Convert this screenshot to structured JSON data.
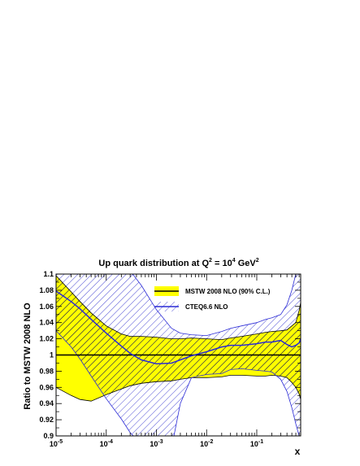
{
  "chart_data": {
    "type": "line",
    "title": "Up quark distribution at Q² = 10⁴ GeV²",
    "title_parts": {
      "base": "Up quark distribution at Q",
      "sup1": "2",
      "mid": " = 10",
      "sup2": "4",
      "end": " GeV",
      "sup3": "2"
    },
    "xlabel": "x",
    "ylabel": "Ratio to MSTW 2008 NLO",
    "x_scale": "log",
    "xlim": [
      1e-05,
      0.75
    ],
    "ylim": [
      0.9,
      1.1
    ],
    "x_ticks": [
      {
        "value": 1e-05,
        "base": "10",
        "exp": "-5"
      },
      {
        "value": 0.0001,
        "base": "10",
        "exp": "-4"
      },
      {
        "value": 0.001,
        "base": "10",
        "exp": "-3"
      },
      {
        "value": 0.01,
        "base": "10",
        "exp": "-2"
      },
      {
        "value": 0.1,
        "base": "10",
        "exp": "-1"
      }
    ],
    "y_ticks": [
      "0.9",
      "0.92",
      "0.94",
      "0.96",
      "0.98",
      "1",
      "1.02",
      "1.04",
      "1.06",
      "1.08",
      "1.1"
    ],
    "grid": false,
    "legend_position": "top-right",
    "colors": {
      "mstw_fill": "#ffff00",
      "cteq_line": "#2b2bd6",
      "cteq_hatch": "#3a3ad0",
      "hatch_dark": "#1a1a1a"
    },
    "x": [
      1e-05,
      2e-05,
      3e-05,
      5e-05,
      0.0001,
      0.0002,
      0.0003,
      0.0005,
      0.001,
      0.002,
      0.003,
      0.005,
      0.01,
      0.02,
      0.03,
      0.05,
      0.1,
      0.15,
      0.2,
      0.3,
      0.4,
      0.5,
      0.6,
      0.7,
      0.75
    ],
    "series": [
      {
        "name": "MSTW 2008 NLO (90% C.L.)",
        "central": [
          1.0,
          1.0,
          1.0,
          1.0,
          1.0,
          1.0,
          1.0,
          1.0,
          1.0,
          1.0,
          1.0,
          1.0,
          1.0,
          1.0,
          1.0,
          1.0,
          1.0,
          1.0,
          1.0,
          1.0,
          1.0,
          1.0,
          1.0,
          1.0,
          1.0
        ],
        "upper": [
          1.098,
          1.078,
          1.066,
          1.052,
          1.036,
          1.026,
          1.023,
          1.023,
          1.022,
          1.02,
          1.02,
          1.021,
          1.02,
          1.019,
          1.021,
          1.023,
          1.026,
          1.028,
          1.029,
          1.03,
          1.031,
          1.036,
          1.04,
          1.055,
          1.065
        ],
        "lower": [
          0.96,
          0.95,
          0.945,
          0.943,
          0.951,
          0.958,
          0.962,
          0.965,
          0.967,
          0.968,
          0.97,
          0.972,
          0.972,
          0.973,
          0.975,
          0.975,
          0.974,
          0.974,
          0.975,
          0.974,
          0.972,
          0.966,
          0.96,
          0.952,
          0.945
        ]
      },
      {
        "name": "CTEQ6.6 NLO",
        "central": [
          1.079,
          1.066,
          1.057,
          1.044,
          1.027,
          1.011,
          1.002,
          0.994,
          0.989,
          0.99,
          0.994,
          0.999,
          1.004,
          1.01,
          1.012,
          1.012,
          1.014,
          1.016,
          1.016,
          1.018,
          1.013,
          1.01,
          1.012,
          1.015,
          1.02
        ],
        "upper": [
          1.13,
          1.126,
          1.124,
          1.122,
          1.118,
          1.112,
          1.104,
          1.086,
          1.056,
          1.033,
          1.027,
          1.025,
          1.024,
          1.029,
          1.033,
          1.036,
          1.04,
          1.044,
          1.046,
          1.05,
          1.062,
          1.08,
          1.1,
          1.12,
          1.13
        ],
        "lower": [
          1.03,
          1.01,
          0.995,
          0.974,
          0.946,
          0.921,
          0.904,
          0.89,
          0.882,
          0.885,
          0.94,
          0.972,
          0.976,
          0.977,
          0.982,
          0.983,
          0.981,
          0.98,
          0.979,
          0.97,
          0.955,
          0.935,
          0.915,
          0.9,
          0.895
        ]
      }
    ]
  }
}
